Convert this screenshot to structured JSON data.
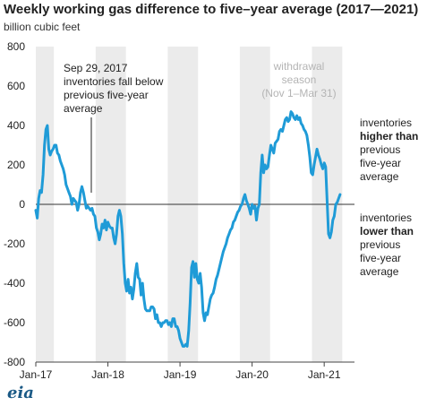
{
  "chart_data": {
    "type": "line",
    "title": "Weekly working gas difference to five–year average (2017—2021)",
    "subtitle": "billion cubic feet",
    "ylim": [
      -800,
      800
    ],
    "yticks": [
      -800,
      -600,
      -400,
      -200,
      0,
      200,
      400,
      600,
      800
    ],
    "xlim": [
      2017.0,
      2021.42
    ],
    "xticks": [
      {
        "value": 2017.0,
        "label": "Jan-17"
      },
      {
        "value": 2018.0,
        "label": "Jan-18"
      },
      {
        "value": 2019.0,
        "label": "Jan-19"
      },
      {
        "value": 2020.0,
        "label": "Jan-20"
      },
      {
        "value": 2021.0,
        "label": "Jan-21"
      }
    ],
    "grid": false,
    "line_color": "#1f9bd7",
    "band_color": "#ebebeb",
    "withdrawal_seasons": [
      [
        2017.0,
        2017.25
      ],
      [
        2017.83,
        2018.25
      ],
      [
        2018.83,
        2019.25
      ],
      [
        2019.83,
        2020.25
      ],
      [
        2020.83,
        2021.25
      ]
    ],
    "series": [
      {
        "x": [
          2017.0,
          2017.02,
          2017.04,
          2017.06,
          2017.08,
          2017.1,
          2017.12,
          2017.14,
          2017.16,
          2017.18,
          2017.2,
          2017.22,
          2017.24,
          2017.26,
          2017.28,
          2017.3,
          2017.32,
          2017.34,
          2017.36,
          2017.38,
          2017.4,
          2017.42,
          2017.44,
          2017.46,
          2017.48,
          2017.5,
          2017.52,
          2017.54,
          2017.56,
          2017.58,
          2017.6,
          2017.62,
          2017.64,
          2017.66,
          2017.68,
          2017.7,
          2017.72,
          2017.74,
          2017.76,
          2017.78,
          2017.8,
          2017.82,
          2017.84,
          2017.86,
          2017.88,
          2017.9,
          2017.92,
          2017.94,
          2017.96,
          2017.98,
          2018.0,
          2018.02,
          2018.04,
          2018.06,
          2018.08,
          2018.1,
          2018.12,
          2018.14,
          2018.16,
          2018.18,
          2018.2,
          2018.22,
          2018.24,
          2018.26,
          2018.28,
          2018.3,
          2018.32,
          2018.34,
          2018.36,
          2018.38,
          2018.4,
          2018.42,
          2018.44,
          2018.46,
          2018.48,
          2018.5,
          2018.52,
          2018.54,
          2018.56,
          2018.58,
          2018.6,
          2018.62,
          2018.64,
          2018.66,
          2018.68,
          2018.7,
          2018.72,
          2018.74,
          2018.76,
          2018.78,
          2018.8,
          2018.82,
          2018.84,
          2018.86,
          2018.88,
          2018.9,
          2018.92,
          2018.94,
          2018.96,
          2018.98,
          2019.0,
          2019.02,
          2019.04,
          2019.06,
          2019.08,
          2019.1,
          2019.12,
          2019.14,
          2019.16,
          2019.18,
          2019.2,
          2019.22,
          2019.24,
          2019.26,
          2019.28,
          2019.3,
          2019.32,
          2019.34,
          2019.36,
          2019.38,
          2019.4,
          2019.42,
          2019.44,
          2019.46,
          2019.48,
          2019.5,
          2019.52,
          2019.54,
          2019.56,
          2019.58,
          2019.6,
          2019.62,
          2019.64,
          2019.66,
          2019.68,
          2019.7,
          2019.72,
          2019.74,
          2019.76,
          2019.78,
          2019.8,
          2019.82,
          2019.84,
          2019.86,
          2019.88,
          2019.9,
          2019.92,
          2019.94,
          2019.96,
          2019.98,
          2020.0,
          2020.02,
          2020.04,
          2020.06,
          2020.08,
          2020.1,
          2020.12,
          2020.14,
          2020.16,
          2020.18,
          2020.2,
          2020.22,
          2020.24,
          2020.26,
          2020.28,
          2020.3,
          2020.32,
          2020.34,
          2020.36,
          2020.38,
          2020.4,
          2020.42,
          2020.44,
          2020.46,
          2020.48,
          2020.5,
          2020.52,
          2020.54,
          2020.56,
          2020.58,
          2020.6,
          2020.62,
          2020.64,
          2020.66,
          2020.68,
          2020.7,
          2020.72,
          2020.74,
          2020.76,
          2020.78,
          2020.8,
          2020.82,
          2020.84,
          2020.86,
          2020.88,
          2020.9,
          2020.92,
          2020.94,
          2020.96,
          2020.98,
          2021.0,
          2021.02,
          2021.04,
          2021.06,
          2021.08,
          2021.1,
          2021.12,
          2021.14,
          2021.16,
          2021.18,
          2021.2,
          2021.22
        ],
        "values": [
          -30,
          -70,
          30,
          70,
          60,
          150,
          300,
          380,
          400,
          280,
          250,
          270,
          280,
          300,
          300,
          260,
          250,
          220,
          200,
          180,
          150,
          100,
          80,
          60,
          40,
          0,
          30,
          20,
          10,
          -30,
          0,
          60,
          90,
          60,
          20,
          -20,
          -10,
          -20,
          -30,
          -20,
          -50,
          -60,
          -120,
          -140,
          -180,
          -150,
          -100,
          -120,
          -80,
          -130,
          -90,
          -110,
          -120,
          -120,
          -170,
          -200,
          -150,
          -60,
          -30,
          -60,
          -150,
          -300,
          -400,
          -440,
          -380,
          -450,
          -420,
          -480,
          -430,
          -350,
          -300,
          -370,
          -380,
          -460,
          -400,
          -480,
          -530,
          -540,
          -540,
          -540,
          -520,
          -520,
          -530,
          -580,
          -560,
          -600,
          -600,
          -620,
          -600,
          -600,
          -590,
          -590,
          -610,
          -600,
          -620,
          -580,
          -580,
          -620,
          -620,
          -640,
          -680,
          -700,
          -720,
          -720,
          -710,
          -720,
          -640,
          -500,
          -320,
          -290,
          -370,
          -300,
          -380,
          -400,
          -350,
          -420,
          -550,
          -590,
          -550,
          -560,
          -520,
          -480,
          -460,
          -450,
          -420,
          -380,
          -360,
          -330,
          -300,
          -270,
          -240,
          -220,
          -200,
          -170,
          -150,
          -130,
          -120,
          -90,
          -80,
          -60,
          -40,
          -30,
          -10,
          0,
          30,
          50,
          20,
          0,
          -20,
          -50,
          0,
          -20,
          -10,
          -80,
          -20,
          0,
          160,
          250,
          160,
          200,
          180,
          190,
          250,
          300,
          280,
          260,
          310,
          320,
          330,
          370,
          380,
          370,
          400,
          430,
          440,
          420,
          430,
          470,
          460,
          440,
          430,
          450,
          430,
          440,
          410,
          400,
          380,
          370,
          350,
          300,
          240,
          160,
          150,
          200,
          240,
          280,
          250,
          230,
          200,
          180,
          210,
          190,
          20,
          -150,
          -170,
          -140,
          -80,
          -60,
          0,
          10,
          30,
          50
        ]
      }
    ]
  },
  "annotations": {
    "inventory_note": {
      "line1": "Sep 29, 2017",
      "line2": "inventories fall below",
      "line3": "previous five-year",
      "line4": "average"
    },
    "season_label": {
      "line1": "withdrawal",
      "line2": "season",
      "line3": "(Nov 1–Mar 31)"
    },
    "higher": {
      "line1": "inventories",
      "bold": "higher than",
      "line3": "previous",
      "line4": "five-year",
      "line5": "average"
    },
    "lower": {
      "line1": "inventories",
      "bold": "lower than",
      "line3": "previous",
      "line4": "five-year",
      "line5": "average"
    }
  },
  "logo": {
    "text": "eia"
  }
}
